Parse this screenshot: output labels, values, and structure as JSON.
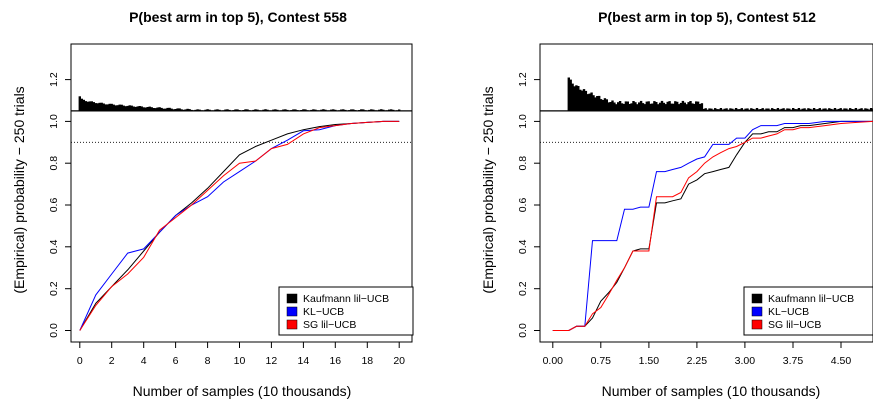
{
  "chart_data": [
    {
      "type": "line",
      "title": "P(best arm in top 5), Contest 558",
      "xlabel": "Number of samples (10 thousands)",
      "ylabel": "(Empirical) probability − 250 trials",
      "xlim": [
        0,
        20
      ],
      "ylim": [
        0,
        1.2
      ],
      "x_ticks": [
        "0",
        "2",
        "4",
        "6",
        "8",
        "10",
        "12",
        "14",
        "16",
        "18",
        "20"
      ],
      "y_ticks": [
        "0.0",
        "0.2",
        "0.4",
        "0.6",
        "0.8",
        "1.0",
        "1.2"
      ],
      "reference_lines": [
        {
          "y": 1.05,
          "style": "solid"
        },
        {
          "y": 0.9,
          "style": "dotted"
        }
      ],
      "density_band": {
        "x_start": 0,
        "x_end": 20,
        "y_base": 1.05,
        "y_peak": 1.12,
        "y_end": 1.055,
        "color": "#000000"
      },
      "legend_position": "bottom-right",
      "series": [
        {
          "name": "Kaufmann lil−UCB",
          "color": "#000000",
          "x": [
            0,
            1,
            2,
            3,
            4,
            5,
            6,
            7,
            8,
            9,
            10,
            11,
            12,
            13,
            14,
            15,
            16,
            17,
            18,
            19,
            20
          ],
          "y": [
            0,
            0.13,
            0.21,
            0.29,
            0.38,
            0.47,
            0.55,
            0.61,
            0.68,
            0.76,
            0.84,
            0.88,
            0.91,
            0.94,
            0.96,
            0.975,
            0.985,
            0.99,
            0.995,
            1.0,
            1.0
          ]
        },
        {
          "name": "KL−UCB",
          "color": "#0000ff",
          "x": [
            0,
            1,
            2,
            3,
            4,
            5,
            6,
            7,
            8,
            9,
            10,
            11,
            12,
            13,
            14,
            15,
            16,
            17,
            18,
            19,
            20
          ],
          "y": [
            0,
            0.17,
            0.27,
            0.37,
            0.39,
            0.47,
            0.55,
            0.6,
            0.64,
            0.71,
            0.76,
            0.81,
            0.87,
            0.91,
            0.955,
            0.96,
            0.98,
            0.99,
            0.995,
            1.0,
            1.0
          ]
        },
        {
          "name": "SG lil−UCB",
          "color": "#ff0000",
          "x": [
            0,
            1,
            2,
            3,
            4,
            5,
            6,
            7,
            8,
            9,
            10,
            11,
            12,
            13,
            14,
            15,
            16,
            17,
            18,
            19,
            20
          ],
          "y": [
            0,
            0.12,
            0.21,
            0.27,
            0.35,
            0.48,
            0.54,
            0.6,
            0.67,
            0.74,
            0.8,
            0.81,
            0.87,
            0.89,
            0.94,
            0.97,
            0.98,
            0.99,
            0.995,
            1.0,
            1.0
          ]
        }
      ]
    },
    {
      "type": "line",
      "title": "P(best arm in top 5), Contest 512",
      "xlabel": "Number of samples (10 thousands)",
      "ylabel": "(Empirical) probability − 250 trials",
      "xlim": [
        0,
        5
      ],
      "ylim": [
        0,
        1.2
      ],
      "x_ticks": [
        "0.00",
        "0.75",
        "1.50",
        "2.25",
        "3.00",
        "3.75",
        "4.50"
      ],
      "y_ticks": [
        "0.0",
        "0.2",
        "0.4",
        "0.6",
        "0.8",
        "1.0",
        "1.2"
      ],
      "reference_lines": [
        {
          "y": 1.05,
          "style": "solid"
        },
        {
          "y": 0.9,
          "style": "dotted"
        }
      ],
      "density_band": {
        "x_start": 0.25,
        "x_end": 5.0,
        "y_base": 1.05,
        "y_peak": 1.21,
        "y_mid": 1.09,
        "x_mid_end": 2.35,
        "y_end": 1.06,
        "color": "#000000"
      },
      "legend_position": "bottom-right",
      "series": [
        {
          "name": "Kaufmann lil−UCB",
          "color": "#000000",
          "x": [
            0,
            0.25,
            0.37,
            0.5,
            0.62,
            0.75,
            0.87,
            1.0,
            1.12,
            1.25,
            1.37,
            1.5,
            1.62,
            1.75,
            1.87,
            2.0,
            2.12,
            2.25,
            2.37,
            2.5,
            2.62,
            2.75,
            2.87,
            3.0,
            3.12,
            3.25,
            3.37,
            3.5,
            3.62,
            3.75,
            3.87,
            4.0,
            4.25,
            4.5,
            4.75,
            5.0
          ],
          "y": [
            0,
            0,
            0.02,
            0.02,
            0.06,
            0.14,
            0.18,
            0.23,
            0.3,
            0.38,
            0.39,
            0.39,
            0.61,
            0.61,
            0.62,
            0.63,
            0.7,
            0.72,
            0.75,
            0.76,
            0.77,
            0.78,
            0.84,
            0.9,
            0.94,
            0.94,
            0.95,
            0.95,
            0.97,
            0.97,
            0.98,
            0.98,
            0.99,
            1.0,
            1.0,
            1.0
          ]
        },
        {
          "name": "KL−UCB",
          "color": "#0000ff",
          "x": [
            0,
            0.25,
            0.37,
            0.5,
            0.62,
            0.75,
            0.87,
            1.0,
            1.12,
            1.25,
            1.37,
            1.5,
            1.62,
            1.75,
            1.87,
            2.0,
            2.12,
            2.25,
            2.37,
            2.5,
            2.62,
            2.75,
            2.87,
            3.0,
            3.12,
            3.25,
            3.37,
            3.5,
            3.62,
            3.75,
            3.87,
            4.0,
            4.25,
            4.5,
            4.75,
            5.0
          ],
          "y": [
            0,
            0,
            0.02,
            0.02,
            0.43,
            0.43,
            0.43,
            0.43,
            0.58,
            0.58,
            0.59,
            0.59,
            0.76,
            0.76,
            0.77,
            0.78,
            0.8,
            0.82,
            0.83,
            0.89,
            0.89,
            0.89,
            0.92,
            0.92,
            0.96,
            0.98,
            0.98,
            0.98,
            0.99,
            0.99,
            0.99,
            0.99,
            1.0,
            1.0,
            1.0,
            1.0
          ]
        },
        {
          "name": "SG lil−UCB",
          "color": "#ff0000",
          "x": [
            0,
            0.25,
            0.37,
            0.5,
            0.62,
            0.75,
            0.87,
            1.0,
            1.12,
            1.25,
            1.37,
            1.5,
            1.62,
            1.75,
            1.87,
            2.0,
            2.12,
            2.25,
            2.37,
            2.5,
            2.62,
            2.75,
            2.87,
            3.0,
            3.12,
            3.25,
            3.37,
            3.5,
            3.62,
            3.75,
            3.87,
            4.0,
            4.25,
            4.5,
            4.75,
            5.0
          ],
          "y": [
            0,
            0,
            0.02,
            0.02,
            0.08,
            0.11,
            0.17,
            0.24,
            0.3,
            0.38,
            0.38,
            0.38,
            0.64,
            0.64,
            0.64,
            0.66,
            0.73,
            0.76,
            0.8,
            0.83,
            0.85,
            0.87,
            0.88,
            0.9,
            0.92,
            0.92,
            0.93,
            0.94,
            0.96,
            0.96,
            0.97,
            0.97,
            0.98,
            0.99,
            0.995,
            1.0
          ]
        }
      ]
    }
  ]
}
